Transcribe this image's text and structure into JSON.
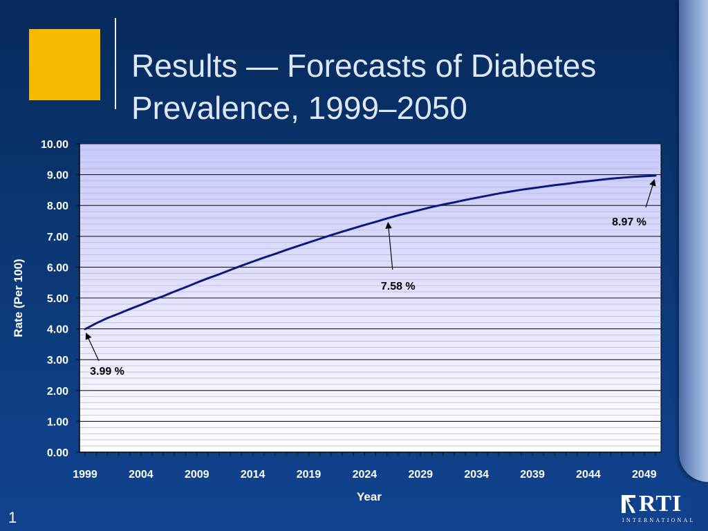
{
  "slide": {
    "title_line1": "Results — Forecasts of Diabetes",
    "title_line2": "Prevalence, 1999–2050",
    "page_number": "1",
    "logo_text": "RTI",
    "logo_subtext": "INTERNATIONAL"
  },
  "colors": {
    "background": "#0c3a78",
    "accent_square": "#f6b800",
    "plot_top": "#c8c8fb",
    "plot_bottom": "#ffffff",
    "line": "#0b1a7a"
  },
  "chart_data": {
    "type": "line",
    "title": "",
    "xlabel": "Year",
    "ylabel": "Rate (Per 100)",
    "xlim": [
      1999,
      2050
    ],
    "ylim": [
      0,
      10
    ],
    "x_ticks": [
      1999,
      2004,
      2009,
      2014,
      2019,
      2024,
      2029,
      2034,
      2039,
      2044,
      2049
    ],
    "y_ticks": [
      "0.00",
      "1.00",
      "2.00",
      "3.00",
      "4.00",
      "5.00",
      "6.00",
      "7.00",
      "8.00",
      "9.00",
      "10.00"
    ],
    "grid": "major and minor horizontal",
    "legend": "none",
    "series": [
      {
        "x": [
          1999,
          2000,
          2001,
          2002,
          2003,
          2004,
          2005,
          2006,
          2007,
          2008,
          2009,
          2010,
          2011,
          2012,
          2013,
          2014,
          2015,
          2016,
          2017,
          2018,
          2019,
          2020,
          2021,
          2022,
          2023,
          2024,
          2025,
          2026,
          2027,
          2028,
          2029,
          2030,
          2031,
          2032,
          2033,
          2034,
          2035,
          2036,
          2037,
          2038,
          2039,
          2040,
          2041,
          2042,
          2043,
          2044,
          2045,
          2046,
          2047,
          2048,
          2049,
          2050
        ],
        "values": [
          3.99,
          4.18,
          4.35,
          4.49,
          4.64,
          4.78,
          4.93,
          5.06,
          5.21,
          5.35,
          5.5,
          5.64,
          5.77,
          5.91,
          6.05,
          6.18,
          6.31,
          6.43,
          6.56,
          6.68,
          6.8,
          6.92,
          7.04,
          7.15,
          7.26,
          7.37,
          7.47,
          7.58,
          7.68,
          7.77,
          7.86,
          7.95,
          8.03,
          8.1,
          8.18,
          8.25,
          8.32,
          8.39,
          8.45,
          8.51,
          8.56,
          8.61,
          8.66,
          8.7,
          8.75,
          8.79,
          8.83,
          8.87,
          8.9,
          8.93,
          8.95,
          8.97
        ]
      }
    ],
    "annotations": [
      {
        "text": "3.99 %",
        "x": 1999,
        "y": 3.99
      },
      {
        "text": "7.58 %",
        "x": 2026,
        "y": 7.58
      },
      {
        "text": "8.97 %",
        "x": 2050,
        "y": 8.97
      }
    ]
  }
}
